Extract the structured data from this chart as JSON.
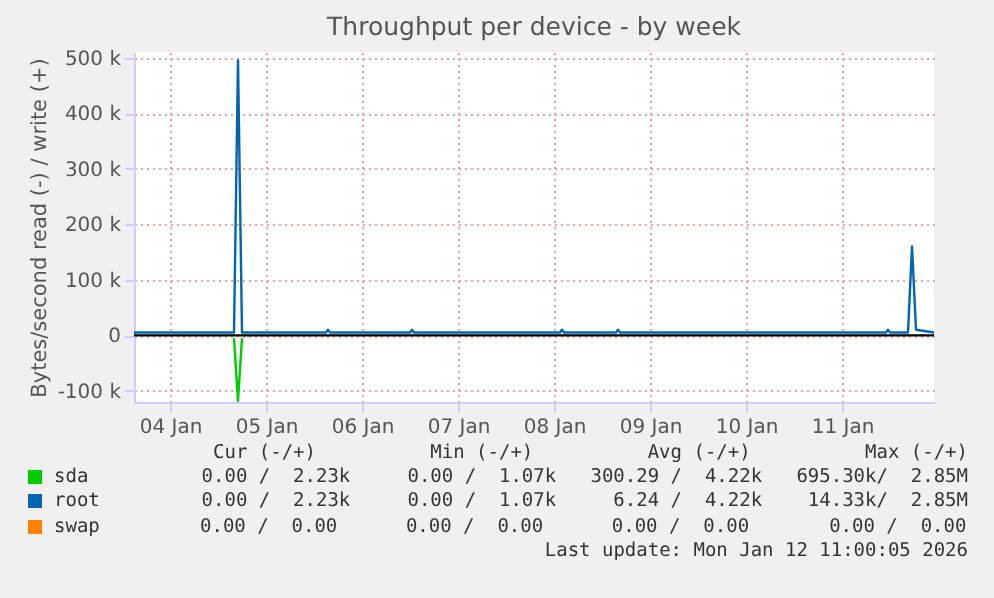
{
  "chart_data": {
    "type": "line",
    "title": "Throughput per device - by week",
    "ylabel": "Bytes/second read (-) / write (+)",
    "x": [
      "2026-01-04T03:00",
      "2026-01-05T04:00",
      "2026-01-05T05:00",
      "2026-01-05T06:00",
      "2026-01-06T03:00",
      "2026-01-06T03:30",
      "2026-01-06T04:00",
      "2026-01-07T00:00",
      "2026-01-07T00:30",
      "2026-01-07T01:00",
      "2026-01-08T13:30",
      "2026-01-08T14:00",
      "2026-01-08T14:30",
      "2026-01-09T03:30",
      "2026-01-09T04:00",
      "2026-01-09T04:30",
      "2026-01-11T23:00",
      "2026-01-11T23:30",
      "2026-01-12T00:00",
      "2026-01-12T04:30",
      "2026-01-12T05:30",
      "2026-01-12T06:30",
      "2026-01-12T11:00"
    ],
    "series": [
      {
        "name": "sda",
        "color": "#00cc00",
        "x": [
          "2026-01-05T04:00",
          "2026-01-05T05:00",
          "2026-01-05T06:00"
        ],
        "values": [
          -5000,
          -118000,
          -5000
        ]
      },
      {
        "name": "root",
        "color": "#0066b3",
        "values": [
          5000,
          5000,
          495000,
          5000,
          5000,
          10000,
          5000,
          5000,
          10000,
          5000,
          5000,
          10000,
          5000,
          5000,
          10000,
          5000,
          5000,
          10000,
          5000,
          5000,
          160000,
          10000,
          5000
        ]
      },
      {
        "name": "swap",
        "color": "#ff8000",
        "values": [
          null,
          null,
          null,
          null,
          null,
          null,
          null,
          null,
          null,
          null,
          null,
          null,
          null,
          null,
          null,
          null,
          null,
          null,
          null,
          null,
          null,
          null,
          null
        ]
      }
    ],
    "xlim": [
      "2026-01-04T03:00",
      "2026-01-12T11:00"
    ],
    "xticks": [
      {
        "value": "2026-01-04T12:00",
        "label": "04 Jan"
      },
      {
        "value": "2026-01-05T12:00",
        "label": "05 Jan"
      },
      {
        "value": "2026-01-06T12:00",
        "label": "06 Jan"
      },
      {
        "value": "2026-01-07T12:00",
        "label": "07 Jan"
      },
      {
        "value": "2026-01-08T12:00",
        "label": "08 Jan"
      },
      {
        "value": "2026-01-09T12:00",
        "label": "09 Jan"
      },
      {
        "value": "2026-01-10T12:00",
        "label": "10 Jan"
      },
      {
        "value": "2026-01-11T12:00",
        "label": "11 Jan"
      }
    ],
    "ylim": [
      -120000,
      510000
    ],
    "yticks": [
      {
        "value": -100000,
        "label": "-100 k"
      },
      0,
      {
        "value": 100000,
        "label": "100 k"
      },
      {
        "value": 200000,
        "label": "200 k"
      },
      {
        "value": 300000,
        "label": "300 k"
      },
      {
        "value": 400000,
        "label": "400 k"
      },
      {
        "value": 500000,
        "label": "500 k"
      }
    ],
    "ref_lines": [
      {
        "axis": "y",
        "value": 0,
        "color": "#000000"
      }
    ],
    "grid": true,
    "legend": "bottom",
    "annotations": [
      "Cur (-/+)          Min (-/+)          Avg (-/+)          Max (-/+)",
      "0.00 /  2.23k     0.00 /  1.07k   300.29 /  4.22k   695.30k/  2.85M",
      "0.00 /  2.23k     0.00 /  1.07k     6.24 /  4.22k    14.33k/  2.85M",
      "0.00 /  0.00      0.00 /  0.00      0.00 /  0.00       0.00 /  0.00 ",
      "Last update: Mon Jan 12 11:00:05 2026"
    ]
  }
}
